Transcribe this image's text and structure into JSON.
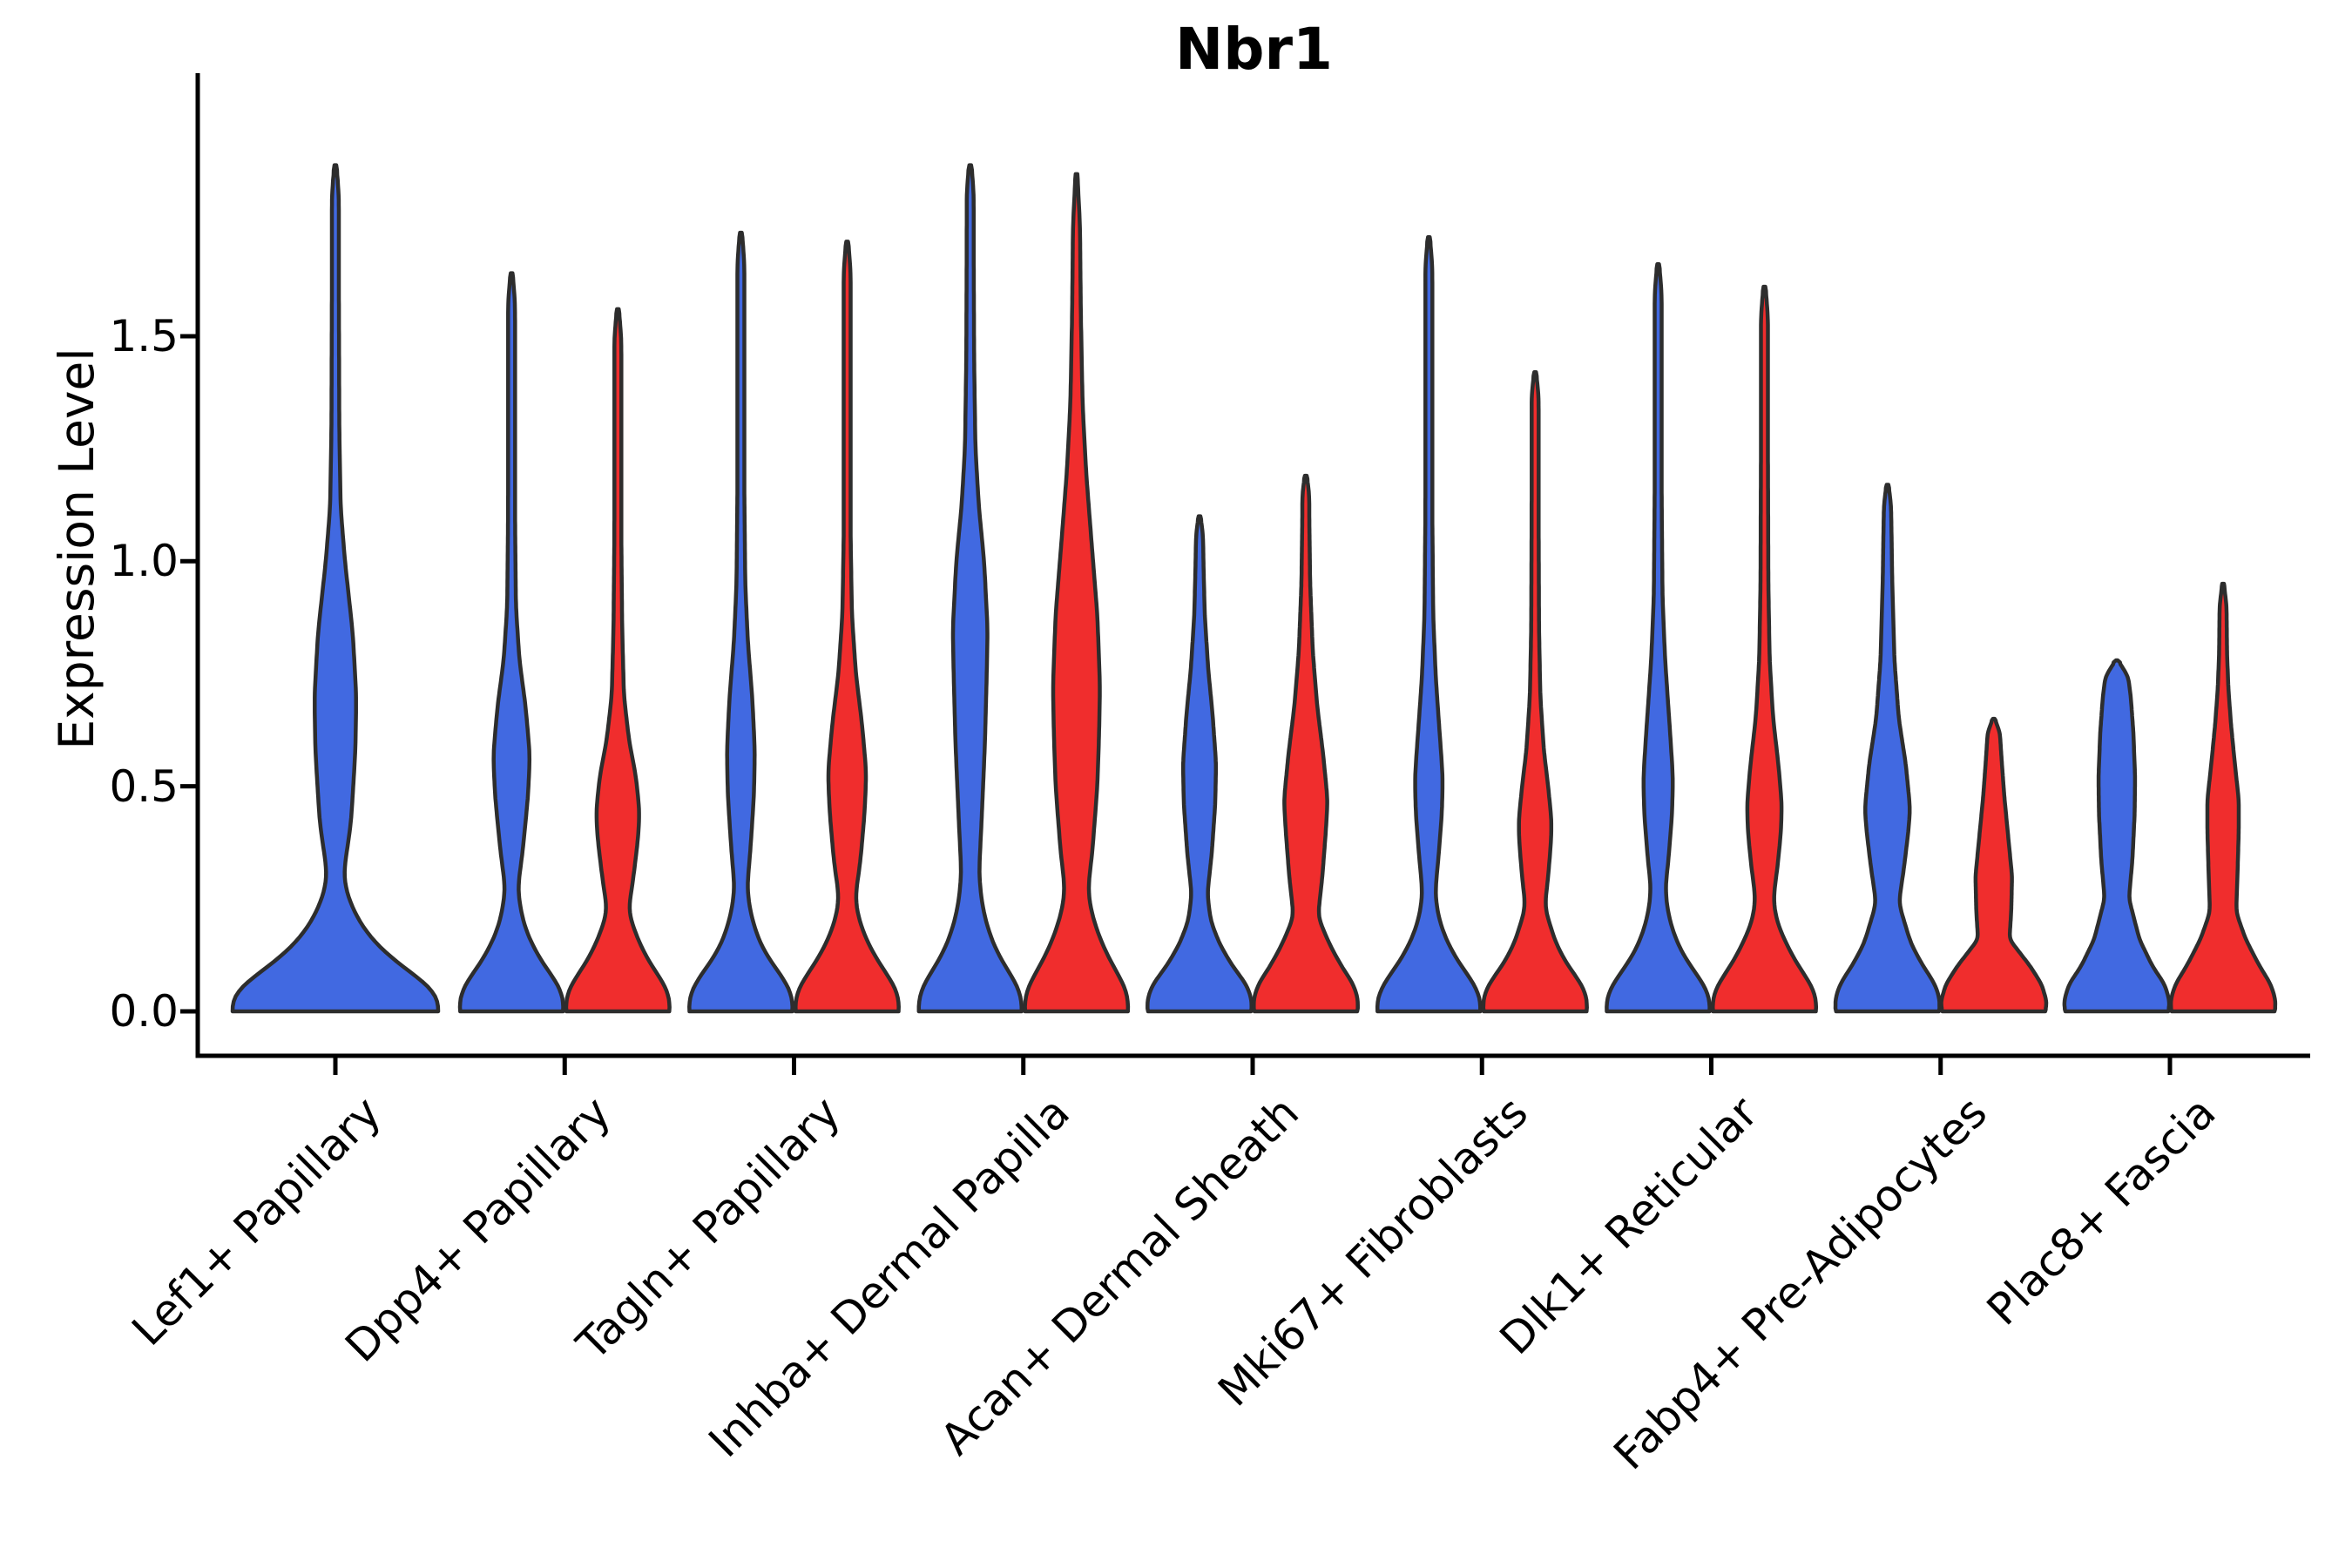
{
  "title": "Nbr1",
  "axes": {
    "ylabel": "Expression Level",
    "y_tick_labels": [
      "1.5",
      "1.0",
      "0.5",
      "0.0"
    ],
    "y_tick_values": [
      1.5,
      1.0,
      0.5,
      0.0
    ]
  },
  "colors": {
    "blue": "#4169E1",
    "red": "#F02D2D",
    "outline": "#2D2D2D",
    "axis": "#000000"
  },
  "chart_data": {
    "type": "violin",
    "title": "Nbr1",
    "xlabel": "",
    "ylabel": "Expression Level",
    "ylim": [
      -0.1,
      2.09
    ],
    "y_ticks": [
      0.0,
      0.5,
      1.0,
      1.5
    ],
    "grid": false,
    "legend": "none",
    "split_colors": {
      "left": "#4169E1",
      "right": "#F02D2D"
    },
    "categories": [
      "Lef1+ Papillary",
      "Dpp4+ Papillary",
      "Tagln+ Papillary",
      "Inhba+ Dermal Papilla",
      "Acan+ Dermal Sheath",
      "Mki67+ Fibroblasts",
      "Dlk1+ Reticular",
      "Fabp4+ Pre-Adipocytes",
      "Plac8+ Fascia"
    ],
    "violins": [
      {
        "category": 0,
        "side": "center",
        "color": "blue",
        "max_expression": 1.88,
        "profile": [
          [
            0,
            118
          ],
          [
            0.02,
            122
          ],
          [
            0.06,
            107
          ],
          [
            0.1,
            76
          ],
          [
            0.15,
            46
          ],
          [
            0.2,
            27
          ],
          [
            0.25,
            15
          ],
          [
            0.3,
            9
          ],
          [
            0.42,
            18
          ],
          [
            0.58,
            23
          ],
          [
            0.7,
            24
          ],
          [
            0.84,
            20
          ],
          [
            1.0,
            11
          ],
          [
            1.12,
            6
          ],
          [
            1.3,
            4.5
          ],
          [
            1.6,
            4
          ],
          [
            1.82,
            4
          ],
          [
            1.88,
            1
          ]
        ]
      },
      {
        "category": 1,
        "side": "left",
        "color": "blue",
        "max_expression": 1.64,
        "profile": [
          [
            0,
            59
          ],
          [
            0.02,
            61
          ],
          [
            0.06,
            54
          ],
          [
            0.1,
            38
          ],
          [
            0.15,
            23
          ],
          [
            0.2,
            13
          ],
          [
            0.27,
            7
          ],
          [
            0.36,
            13
          ],
          [
            0.48,
            19
          ],
          [
            0.57,
            21
          ],
          [
            0.68,
            16
          ],
          [
            0.78,
            9
          ],
          [
            0.9,
            5
          ],
          [
            1.1,
            4
          ],
          [
            1.4,
            4
          ],
          [
            1.58,
            4
          ],
          [
            1.64,
            1
          ]
        ]
      },
      {
        "category": 1,
        "side": "right",
        "color": "red",
        "max_expression": 1.56,
        "profile": [
          [
            0,
            59
          ],
          [
            0.02,
            61
          ],
          [
            0.06,
            54
          ],
          [
            0.1,
            39
          ],
          [
            0.15,
            25
          ],
          [
            0.22,
            12
          ],
          [
            0.3,
            18
          ],
          [
            0.38,
            23
          ],
          [
            0.44,
            25
          ],
          [
            0.52,
            21
          ],
          [
            0.6,
            13
          ],
          [
            0.7,
            7
          ],
          [
            0.85,
            5
          ],
          [
            1.05,
            4
          ],
          [
            1.35,
            4
          ],
          [
            1.5,
            4
          ],
          [
            1.56,
            1
          ]
        ]
      },
      {
        "category": 2,
        "side": "left",
        "color": "blue",
        "max_expression": 1.73,
        "profile": [
          [
            0,
            59
          ],
          [
            0.02,
            61
          ],
          [
            0.06,
            54
          ],
          [
            0.1,
            38
          ],
          [
            0.15,
            22
          ],
          [
            0.21,
            12
          ],
          [
            0.27,
            7
          ],
          [
            0.36,
            11
          ],
          [
            0.48,
            15
          ],
          [
            0.58,
            16
          ],
          [
            0.7,
            13
          ],
          [
            0.82,
            8
          ],
          [
            0.95,
            5
          ],
          [
            1.15,
            4
          ],
          [
            1.45,
            4
          ],
          [
            1.67,
            4
          ],
          [
            1.73,
            1
          ]
        ]
      },
      {
        "category": 2,
        "side": "right",
        "color": "red",
        "max_expression": 1.71,
        "profile": [
          [
            0,
            59
          ],
          [
            0.02,
            61
          ],
          [
            0.06,
            54
          ],
          [
            0.1,
            39
          ],
          [
            0.15,
            24
          ],
          [
            0.2,
            14
          ],
          [
            0.25,
            9
          ],
          [
            0.33,
            15
          ],
          [
            0.44,
            20
          ],
          [
            0.53,
            22
          ],
          [
            0.64,
            17
          ],
          [
            0.75,
            10
          ],
          [
            0.88,
            5.5
          ],
          [
            1.05,
            4
          ],
          [
            1.4,
            4
          ],
          [
            1.65,
            4
          ],
          [
            1.71,
            1
          ]
        ]
      },
      {
        "category": 3,
        "side": "left",
        "color": "blue",
        "max_expression": 1.88,
        "profile": [
          [
            0,
            59
          ],
          [
            0.02,
            61
          ],
          [
            0.06,
            54
          ],
          [
            0.1,
            40
          ],
          [
            0.15,
            26
          ],
          [
            0.22,
            15
          ],
          [
            0.3,
            10
          ],
          [
            0.42,
            13
          ],
          [
            0.6,
            17
          ],
          [
            0.75,
            19
          ],
          [
            0.85,
            20
          ],
          [
            1.0,
            16
          ],
          [
            1.12,
            10
          ],
          [
            1.25,
            6
          ],
          [
            1.45,
            4.5
          ],
          [
            1.7,
            4
          ],
          [
            1.83,
            4
          ],
          [
            1.88,
            1
          ]
        ]
      },
      {
        "category": 3,
        "side": "right",
        "color": "red",
        "max_expression": 1.86,
        "profile": [
          [
            0,
            59
          ],
          [
            0.02,
            61
          ],
          [
            0.06,
            55
          ],
          [
            0.1,
            42
          ],
          [
            0.16,
            27
          ],
          [
            0.22,
            17
          ],
          [
            0.27,
            13
          ],
          [
            0.35,
            18
          ],
          [
            0.5,
            24
          ],
          [
            0.62,
            26
          ],
          [
            0.72,
            27
          ],
          [
            0.88,
            24
          ],
          [
            1.05,
            17
          ],
          [
            1.2,
            11
          ],
          [
            1.35,
            7
          ],
          [
            1.55,
            5
          ],
          [
            1.75,
            4
          ],
          [
            1.86,
            1
          ]
        ]
      },
      {
        "category": 4,
        "side": "left",
        "color": "blue",
        "max_expression": 1.1,
        "profile": [
          [
            0,
            59
          ],
          [
            0.02,
            61
          ],
          [
            0.06,
            54
          ],
          [
            0.1,
            38
          ],
          [
            0.15,
            23
          ],
          [
            0.2,
            13
          ],
          [
            0.26,
            9
          ],
          [
            0.35,
            14
          ],
          [
            0.46,
            18
          ],
          [
            0.55,
            19
          ],
          [
            0.66,
            15
          ],
          [
            0.76,
            10
          ],
          [
            0.88,
            6
          ],
          [
            1.0,
            4.5
          ],
          [
            1.06,
            4
          ],
          [
            1.1,
            1
          ]
        ]
      },
      {
        "category": 4,
        "side": "right",
        "color": "red",
        "max_expression": 1.19,
        "profile": [
          [
            0,
            59
          ],
          [
            0.02,
            61
          ],
          [
            0.06,
            55
          ],
          [
            0.1,
            41
          ],
          [
            0.15,
            27
          ],
          [
            0.21,
            14
          ],
          [
            0.3,
            19
          ],
          [
            0.4,
            23
          ],
          [
            0.47,
            25
          ],
          [
            0.57,
            20
          ],
          [
            0.68,
            13
          ],
          [
            0.8,
            8
          ],
          [
            0.95,
            5
          ],
          [
            1.1,
            4
          ],
          [
            1.15,
            4
          ],
          [
            1.19,
            1
          ]
        ]
      },
      {
        "category": 5,
        "side": "left",
        "color": "blue",
        "max_expression": 1.72,
        "profile": [
          [
            0,
            59
          ],
          [
            0.02,
            61
          ],
          [
            0.06,
            53
          ],
          [
            0.1,
            37
          ],
          [
            0.15,
            22
          ],
          [
            0.2,
            12
          ],
          [
            0.26,
            7
          ],
          [
            0.34,
            11
          ],
          [
            0.44,
            15
          ],
          [
            0.52,
            16
          ],
          [
            0.63,
            12
          ],
          [
            0.74,
            8
          ],
          [
            0.88,
            5
          ],
          [
            1.1,
            4
          ],
          [
            1.4,
            4
          ],
          [
            1.66,
            4
          ],
          [
            1.72,
            1
          ]
        ]
      },
      {
        "category": 5,
        "side": "right",
        "color": "red",
        "max_expression": 1.42,
        "profile": [
          [
            0,
            59
          ],
          [
            0.02,
            61
          ],
          [
            0.06,
            54
          ],
          [
            0.1,
            38
          ],
          [
            0.15,
            24
          ],
          [
            0.23,
            11
          ],
          [
            0.3,
            15
          ],
          [
            0.37,
            18
          ],
          [
            0.42,
            19
          ],
          [
            0.5,
            15
          ],
          [
            0.58,
            10
          ],
          [
            0.7,
            6
          ],
          [
            0.85,
            4.5
          ],
          [
            1.1,
            4
          ],
          [
            1.3,
            4
          ],
          [
            1.37,
            4
          ],
          [
            1.42,
            1
          ]
        ]
      },
      {
        "category": 6,
        "side": "left",
        "color": "blue",
        "max_expression": 1.66,
        "profile": [
          [
            0,
            59
          ],
          [
            0.02,
            61
          ],
          [
            0.06,
            53
          ],
          [
            0.1,
            37
          ],
          [
            0.15,
            22
          ],
          [
            0.21,
            12
          ],
          [
            0.27,
            8
          ],
          [
            0.34,
            12
          ],
          [
            0.44,
            16
          ],
          [
            0.52,
            17
          ],
          [
            0.64,
            13
          ],
          [
            0.78,
            8
          ],
          [
            0.92,
            5
          ],
          [
            1.15,
            4
          ],
          [
            1.45,
            4
          ],
          [
            1.6,
            4
          ],
          [
            1.66,
            1
          ]
        ]
      },
      {
        "category": 6,
        "side": "right",
        "color": "red",
        "max_expression": 1.61,
        "profile": [
          [
            0,
            59
          ],
          [
            0.02,
            61
          ],
          [
            0.06,
            54
          ],
          [
            0.1,
            39
          ],
          [
            0.15,
            25
          ],
          [
            0.2,
            14
          ],
          [
            0.25,
            10
          ],
          [
            0.32,
            15
          ],
          [
            0.4,
            19
          ],
          [
            0.46,
            20
          ],
          [
            0.55,
            16
          ],
          [
            0.65,
            10
          ],
          [
            0.78,
            6
          ],
          [
            0.95,
            4.5
          ],
          [
            1.25,
            4
          ],
          [
            1.55,
            4
          ],
          [
            1.61,
            1
          ]
        ]
      },
      {
        "category": 7,
        "side": "left",
        "color": "blue",
        "max_expression": 1.17,
        "profile": [
          [
            0,
            59
          ],
          [
            0.02,
            61
          ],
          [
            0.06,
            55
          ],
          [
            0.1,
            41
          ],
          [
            0.15,
            27
          ],
          [
            0.24,
            13
          ],
          [
            0.32,
            19
          ],
          [
            0.4,
            24
          ],
          [
            0.45,
            26
          ],
          [
            0.55,
            21
          ],
          [
            0.65,
            13
          ],
          [
            0.78,
            8
          ],
          [
            0.95,
            5.5
          ],
          [
            1.08,
            4.5
          ],
          [
            1.13,
            4
          ],
          [
            1.17,
            1
          ]
        ]
      },
      {
        "category": 7,
        "side": "right",
        "color": "red",
        "max_expression": 0.65,
        "profile": [
          [
            0,
            59
          ],
          [
            0.02,
            61
          ],
          [
            0.06,
            55
          ],
          [
            0.1,
            42
          ],
          [
            0.16,
            18
          ],
          [
            0.22,
            20
          ],
          [
            0.3,
            21
          ],
          [
            0.4,
            16
          ],
          [
            0.48,
            12
          ],
          [
            0.56,
            9
          ],
          [
            0.62,
            7
          ],
          [
            0.65,
            1
          ]
        ]
      },
      {
        "category": 8,
        "side": "left",
        "color": "blue",
        "max_expression": 0.78,
        "profile": [
          [
            0,
            59
          ],
          [
            0.02,
            61
          ],
          [
            0.06,
            55
          ],
          [
            0.1,
            41
          ],
          [
            0.16,
            26
          ],
          [
            0.25,
            14
          ],
          [
            0.34,
            18
          ],
          [
            0.44,
            20.5
          ],
          [
            0.52,
            21
          ],
          [
            0.62,
            19
          ],
          [
            0.7,
            16
          ],
          [
            0.745,
            13
          ],
          [
            0.78,
            1
          ]
        ]
      },
      {
        "category": 8,
        "side": "right",
        "color": "red",
        "max_expression": 0.95,
        "profile": [
          [
            0,
            59
          ],
          [
            0.02,
            61
          ],
          [
            0.06,
            55
          ],
          [
            0.1,
            42
          ],
          [
            0.16,
            26
          ],
          [
            0.22,
            15
          ],
          [
            0.3,
            16.5
          ],
          [
            0.4,
            18
          ],
          [
            0.47,
            18
          ],
          [
            0.56,
            13
          ],
          [
            0.64,
            9
          ],
          [
            0.72,
            6
          ],
          [
            0.8,
            4.5
          ],
          [
            0.9,
            4
          ],
          [
            0.95,
            1
          ]
        ]
      }
    ]
  }
}
